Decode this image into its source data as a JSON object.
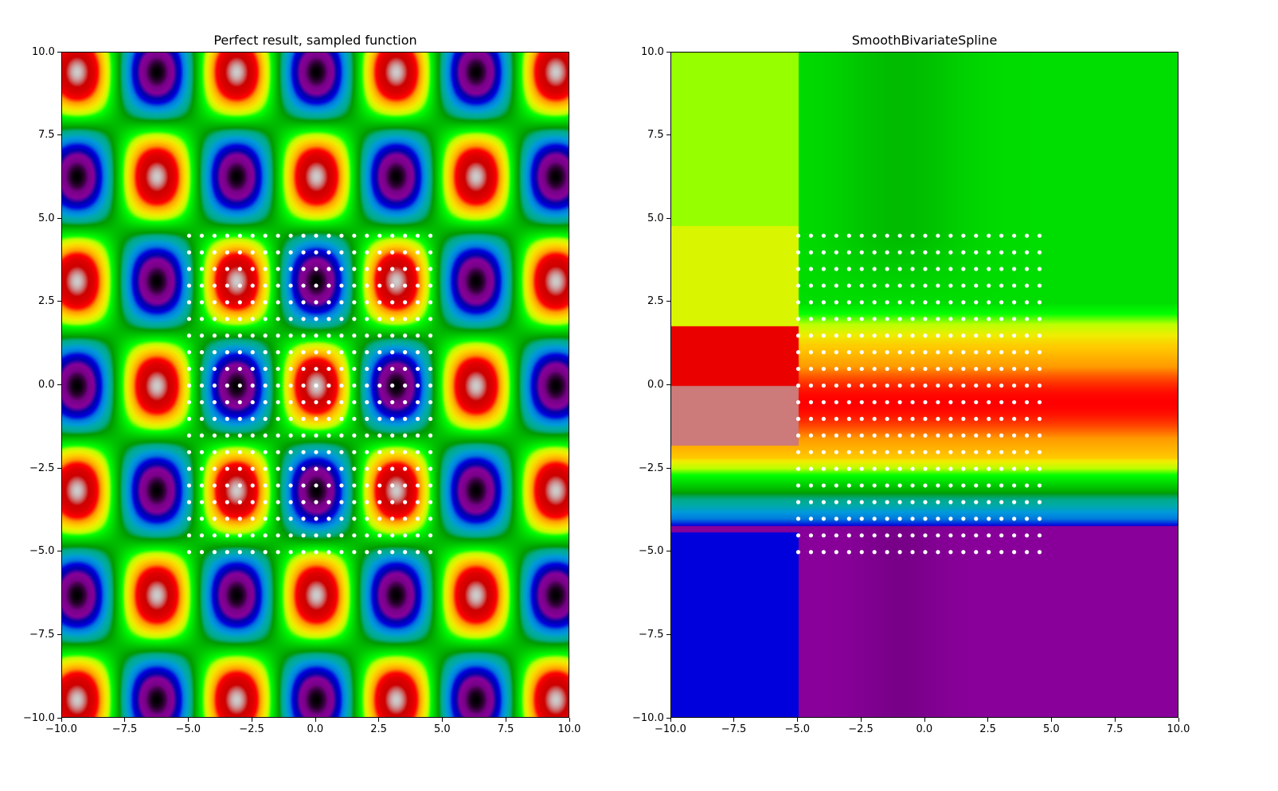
{
  "chart_data": [
    {
      "type": "heatmap",
      "title": "Perfect result, sampled function",
      "xlim": [
        -10,
        10
      ],
      "ylim": [
        -10,
        10
      ],
      "xticks": [
        -10,
        -7.5,
        -5,
        -2.5,
        0,
        2.5,
        5,
        7.5,
        10
      ],
      "yticks": [
        -10,
        -7.5,
        -5,
        -2.5,
        0,
        2.5,
        5,
        7.5,
        10
      ],
      "xtick_labels": [
        "−10.0",
        "−7.5",
        "−5.0",
        "−2.5",
        "0.0",
        "2.5",
        "5.0",
        "7.5",
        "10.0"
      ],
      "ytick_labels": [
        "−10.0",
        "−7.5",
        "−5.0",
        "−2.5",
        "0.0",
        "2.5",
        "5.0",
        "7.5",
        "10.0"
      ],
      "colormap": "nipy_spectral",
      "field": "periodic pattern: minima (black) at x = 0, ±2π near y = ±π(2k+1); maxima (white) interleaved",
      "sample_points": {
        "x": [
          -5.0,
          -4.5,
          -4.0,
          -3.5,
          -3.0,
          -2.5,
          -2.0,
          -1.5,
          -1.0,
          -0.5,
          0.0,
          0.5,
          1.0,
          1.5,
          2.0,
          2.5,
          3.0,
          3.5,
          4.0,
          4.5
        ],
        "y": [
          -5.0,
          -4.5,
          -4.0,
          -3.5,
          -3.0,
          -2.5,
          -2.0,
          -1.5,
          -1.0,
          -0.5,
          0.0,
          0.5,
          1.0,
          1.5,
          2.0,
          2.5,
          3.0,
          3.5,
          4.0,
          4.5
        ],
        "color": "#ffffff"
      }
    },
    {
      "type": "heatmap",
      "title": "SmoothBivariateSpline",
      "xlim": [
        -10,
        10
      ],
      "ylim": [
        -10,
        10
      ],
      "xticks": [
        -10,
        -7.5,
        -5,
        -2.5,
        0,
        2.5,
        5,
        7.5,
        10
      ],
      "yticks": [
        -10,
        -7.5,
        -5,
        -2.5,
        0,
        2.5,
        5,
        7.5,
        10
      ],
      "xtick_labels": [
        "−10.0",
        "−7.5",
        "−5.0",
        "−2.5",
        "0.0",
        "2.5",
        "5.0",
        "7.5",
        "10.0"
      ],
      "ytick_labels": [
        "−10.0",
        "−7.5",
        "−5.0",
        "−2.5",
        "0.0",
        "2.5",
        "5.0",
        "7.5",
        "10.0"
      ],
      "colormap": "nipy_spectral",
      "field": "spline fit: clamped outside [-5, 4.5] in x and y; band structure in y",
      "sample_points": {
        "x": [
          -5.0,
          -4.5,
          -4.0,
          -3.5,
          -3.0,
          -2.5,
          -2.0,
          -1.5,
          -1.0,
          -0.5,
          0.0,
          0.5,
          1.0,
          1.5,
          2.0,
          2.5,
          3.0,
          3.5,
          4.0,
          4.5
        ],
        "y": [
          -5.0,
          -4.5,
          -4.0,
          -3.5,
          -3.0,
          -2.5,
          -2.0,
          -1.5,
          -1.0,
          -0.5,
          0.0,
          0.5,
          1.0,
          1.5,
          2.0,
          2.5,
          3.0,
          3.5,
          4.0,
          4.5
        ],
        "color": "#ffffff"
      }
    }
  ]
}
